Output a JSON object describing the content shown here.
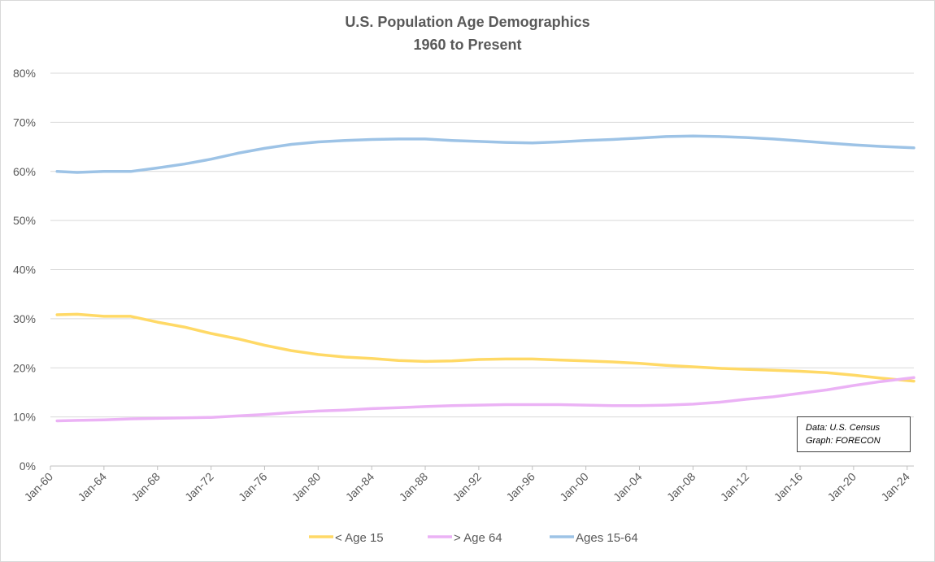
{
  "chart_data": {
    "type": "line",
    "title": "U.S. Population Age Demographics",
    "subtitle": "1960 to Present",
    "xlabel": "",
    "ylabel": "",
    "xlim": [
      1960,
      2024.5
    ],
    "ylim": [
      0,
      80
    ],
    "y_ticks": [
      "0%",
      "10%",
      "20%",
      "30%",
      "40%",
      "50%",
      "60%",
      "70%",
      "80%"
    ],
    "y_tick_values": [
      0,
      10,
      20,
      30,
      40,
      50,
      60,
      70,
      80
    ],
    "x_ticks": [
      "Jan-60",
      "Jan-64",
      "Jan-68",
      "Jan-72",
      "Jan-76",
      "Jan-80",
      "Jan-84",
      "Jan-88",
      "Jan-92",
      "Jan-96",
      "Jan-00",
      "Jan-04",
      "Jan-08",
      "Jan-12",
      "Jan-16",
      "Jan-20",
      "Jan-24"
    ],
    "x_tick_values": [
      1960,
      1964,
      1968,
      1972,
      1976,
      1980,
      1984,
      1988,
      1992,
      1996,
      2000,
      2004,
      2008,
      2012,
      2016,
      2020,
      2024
    ],
    "grid": true,
    "legend_position": "bottom",
    "annotation": {
      "line1": "Data: U.S. Census",
      "line2": "Graph: FORECON"
    },
    "series": [
      {
        "name": "< Age 15",
        "color": "#FFD966",
        "x": [
          1960.5,
          1962,
          1964,
          1966,
          1968,
          1970,
          1972,
          1974,
          1976,
          1978,
          1980,
          1982,
          1984,
          1986,
          1988,
          1990,
          1992,
          1994,
          1996,
          1998,
          2000,
          2002,
          2004,
          2006,
          2008,
          2010,
          2012,
          2014,
          2016,
          2018,
          2020,
          2022,
          2024.5
        ],
        "values": [
          30.8,
          30.9,
          30.5,
          30.5,
          29.3,
          28.3,
          27.0,
          25.9,
          24.6,
          23.5,
          22.7,
          22.2,
          21.9,
          21.5,
          21.3,
          21.4,
          21.7,
          21.8,
          21.8,
          21.6,
          21.4,
          21.2,
          20.9,
          20.5,
          20.2,
          19.9,
          19.7,
          19.5,
          19.3,
          19.0,
          18.5,
          17.9,
          17.3
        ]
      },
      {
        "name": "> Age 64",
        "color": "#EBB2F5",
        "x": [
          1960.5,
          1962,
          1964,
          1966,
          1968,
          1970,
          1972,
          1974,
          1976,
          1978,
          1980,
          1982,
          1984,
          1986,
          1988,
          1990,
          1992,
          1994,
          1996,
          1998,
          2000,
          2002,
          2004,
          2006,
          2008,
          2010,
          2012,
          2014,
          2016,
          2018,
          2020,
          2022,
          2024.5
        ],
        "values": [
          9.2,
          9.3,
          9.4,
          9.6,
          9.7,
          9.8,
          9.9,
          10.2,
          10.5,
          10.9,
          11.2,
          11.4,
          11.7,
          11.9,
          12.1,
          12.3,
          12.4,
          12.5,
          12.5,
          12.5,
          12.4,
          12.3,
          12.3,
          12.4,
          12.6,
          13.0,
          13.6,
          14.1,
          14.8,
          15.5,
          16.4,
          17.2,
          18.0
        ]
      },
      {
        "name": "Ages 15-64",
        "color": "#9DC3E6",
        "x": [
          1960.5,
          1962,
          1964,
          1966,
          1968,
          1970,
          1972,
          1974,
          1976,
          1978,
          1980,
          1982,
          1984,
          1986,
          1988,
          1990,
          1992,
          1994,
          1996,
          1998,
          2000,
          2002,
          2004,
          2006,
          2008,
          2010,
          2012,
          2014,
          2016,
          2018,
          2020,
          2022,
          2024.5
        ],
        "values": [
          60.0,
          59.8,
          60.0,
          60.0,
          60.7,
          61.5,
          62.5,
          63.7,
          64.7,
          65.5,
          66.0,
          66.3,
          66.5,
          66.6,
          66.6,
          66.3,
          66.1,
          65.9,
          65.8,
          66.0,
          66.3,
          66.5,
          66.8,
          67.1,
          67.2,
          67.1,
          66.9,
          66.6,
          66.2,
          65.8,
          65.4,
          65.1,
          64.8
        ]
      }
    ]
  }
}
